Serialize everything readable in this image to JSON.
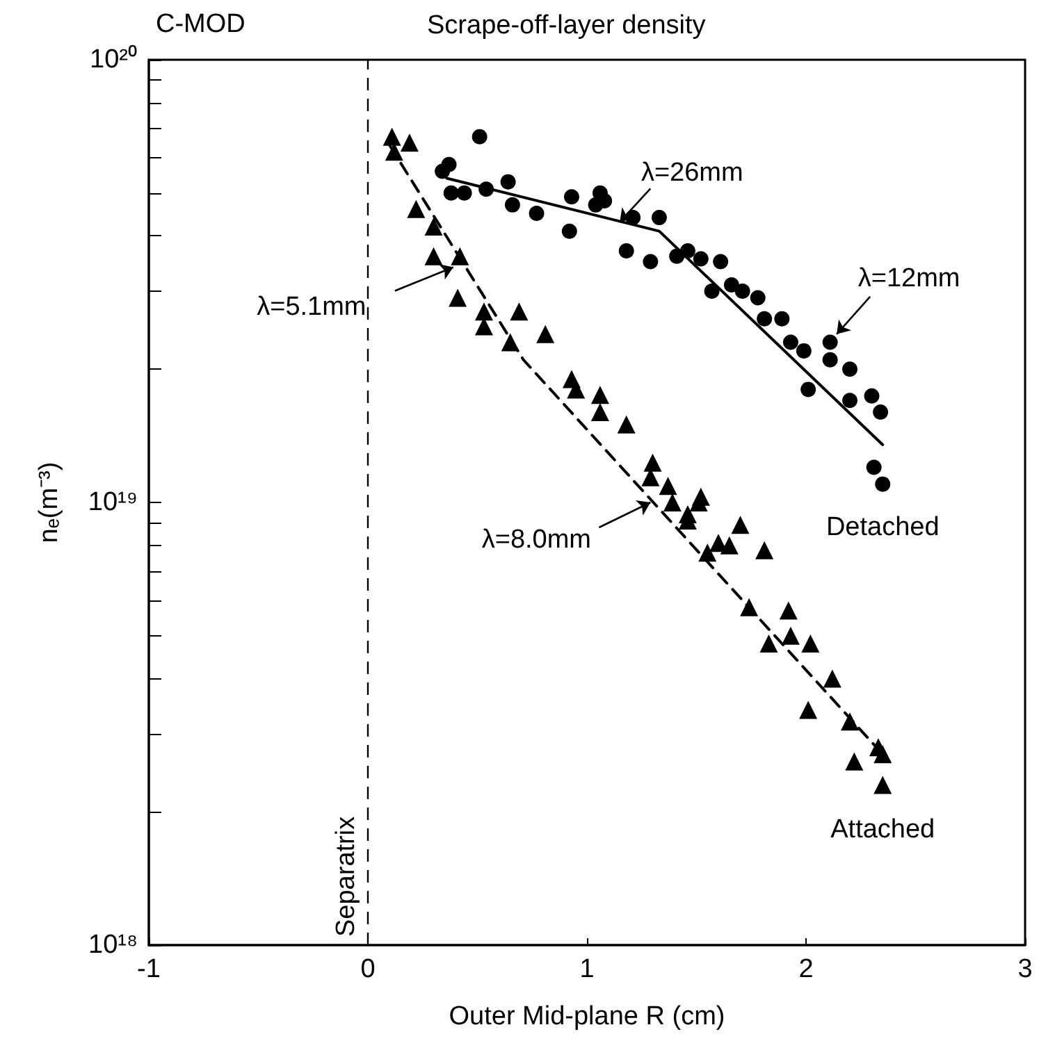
{
  "chart_data": {
    "type": "scatter",
    "title": "Scrape-off-layer density",
    "xlabel": "Outer Mid-plane R (cm)",
    "ylabel": "nₑ(m⁻³)",
    "xlim": [
      -1,
      3
    ],
    "xticks": [
      -1,
      0,
      1,
      2,
      3
    ],
    "ylim": [
      1e+18,
      1e+20
    ],
    "log": "y",
    "yticks": [
      {
        "value": 1e+18,
        "label": "10¹⁸"
      },
      {
        "value": 2e+18,
        "label": null
      },
      {
        "value": 3e+18,
        "label": null
      },
      {
        "value": 4e+18,
        "label": null
      },
      {
        "value": 5e+18,
        "label": null
      },
      {
        "value": 6e+18,
        "label": null
      },
      {
        "value": 7e+18,
        "label": null
      },
      {
        "value": 8e+18,
        "label": null
      },
      {
        "value": 9e+18,
        "label": null
      },
      {
        "value": 1e+19,
        "label": "10¹⁹"
      },
      {
        "value": 2e+19,
        "label": null
      },
      {
        "value": 3e+19,
        "label": null
      },
      {
        "value": 4e+19,
        "label": null
      },
      {
        "value": 5e+19,
        "label": null
      },
      {
        "value": 6e+19,
        "label": null
      },
      {
        "value": 7e+19,
        "label": null
      },
      {
        "value": 8e+19,
        "label": null
      },
      {
        "value": 9e+19,
        "label": null
      },
      {
        "value": 1e+20,
        "label": "10²⁰"
      }
    ],
    "grid": false,
    "legend": false,
    "ref_lines": [
      {
        "axis": "x",
        "value": 0,
        "label": "Separatrix",
        "line_style": "dashed",
        "color": "#000000"
      }
    ],
    "annotations": [
      "C-MOD",
      {
        "text": "λ=26mm",
        "x": 1.15,
        "y": 4.3e+19
      },
      {
        "text": "λ=12mm",
        "x": 2.14,
        "y": 2.4e+19
      },
      {
        "text": "λ=5.1mm",
        "x": 0.39,
        "y": 3.4e+19
      },
      {
        "text": "λ=8.0mm",
        "x": 1.29,
        "y": 1e+19
      }
    ],
    "series": [
      {
        "name": "Detached",
        "marker": "circle",
        "color": "#000000",
        "x": [
          0.51,
          0.37,
          0.34,
          0.38,
          0.44,
          0.54,
          0.64,
          0.66,
          0.77,
          0.92,
          0.93,
          1.04,
          1.06,
          1.08,
          1.18,
          1.21,
          1.29,
          1.33,
          1.41,
          1.46,
          1.52,
          1.61,
          1.57,
          1.66,
          1.71,
          1.78,
          1.81,
          1.89,
          1.93,
          1.99,
          2.01,
          2.11,
          2.11,
          2.2,
          2.2,
          2.3,
          2.34,
          2.31,
          2.35
        ],
        "values": [
          6.7e+19,
          5.8e+19,
          5.6e+19,
          5e+19,
          5e+19,
          5.1e+19,
          5.3e+19,
          4.7e+19,
          4.5e+19,
          4.1e+19,
          4.9e+19,
          4.7e+19,
          5e+19,
          4.8e+19,
          3.7e+19,
          4.4e+19,
          3.5e+19,
          4.4e+19,
          3.6e+19,
          3.7e+19,
          3.55e+19,
          3.5e+19,
          3e+19,
          3.1e+19,
          3e+19,
          2.9e+19,
          2.6e+19,
          2.6e+19,
          2.3e+19,
          2.2e+19,
          1.8e+19,
          2.3e+19,
          2.1e+19,
          2e+19,
          1.7e+19,
          1.74e+19,
          1.6e+19,
          1.2e+19,
          1.1e+19
        ]
      },
      {
        "name": "Attached",
        "marker": "triangle",
        "color": "#000000",
        "x": [
          0.11,
          0.19,
          0.12,
          0.22,
          0.3,
          0.3,
          0.42,
          0.41,
          0.53,
          0.53,
          0.69,
          0.65,
          0.81,
          0.93,
          0.95,
          1.06,
          1.06,
          1.18,
          1.3,
          1.29,
          1.37,
          1.52,
          1.46,
          1.51,
          1.39,
          1.46,
          1.7,
          1.6,
          1.65,
          1.55,
          1.81,
          1.74,
          1.92,
          1.93,
          1.83,
          2.02,
          2.12,
          2.01,
          2.2,
          2.33,
          2.35,
          2.22,
          2.35
        ],
        "values": [
          6.7e+19,
          6.5e+19,
          6.2e+19,
          4.6e+19,
          4.2e+19,
          3.6e+19,
          3.6e+19,
          2.9e+19,
          2.7e+19,
          2.5e+19,
          2.7e+19,
          2.3e+19,
          2.4e+19,
          1.9e+19,
          1.8e+19,
          1.75e+19,
          1.6e+19,
          1.5e+19,
          1.23e+19,
          1.14e+19,
          1.09e+19,
          1.03e+19,
          9.4e+18,
          1e+19,
          1e+19,
          9.1e+18,
          8.9e+18,
          8.1e+18,
          8e+18,
          7.7e+18,
          7.8e+18,
          5.8e+18,
          5.7e+18,
          5e+18,
          4.8e+18,
          4.8e+18,
          4e+18,
          3.4e+18,
          3.2e+18,
          2.8e+18,
          2.7e+18,
          2.6e+18,
          2.3e+18
        ]
      },
      {
        "type": "line",
        "marker": "none",
        "line_style": "solid",
        "color": "#000000",
        "x": [
          0.36,
          1.33,
          2.35
        ],
        "values": [
          5.4e+19,
          4.1e+19,
          1.35e+19
        ]
      },
      {
        "type": "line",
        "marker": "none",
        "line_style": "dashed",
        "color": "#000000",
        "x": [
          0.1,
          0.71,
          2.38
        ],
        "values": [
          6.4e+19,
          2.1e+19,
          2.6e+18
        ]
      }
    ]
  }
}
